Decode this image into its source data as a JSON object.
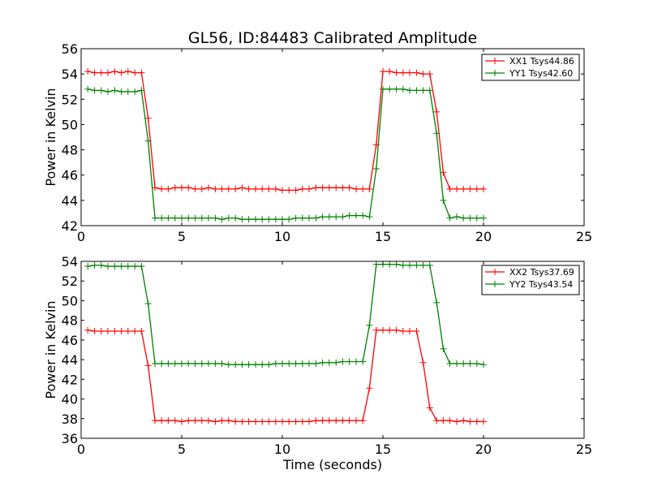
{
  "figure": {
    "title": "GL56, ID:84483 Calibrated Amplitude"
  },
  "chart_data": [
    {
      "type": "line",
      "title": "GL56, ID:84483 Calibrated Amplitude",
      "xlabel": "",
      "ylabel": "Power in Kelvin",
      "xlim": [
        0,
        25
      ],
      "ylim": [
        42,
        56
      ],
      "xticks": [
        "0",
        "5",
        "10",
        "15",
        "20",
        "25"
      ],
      "yticks": [
        "42",
        "44",
        "46",
        "48",
        "50",
        "52",
        "54",
        "56"
      ],
      "grid": false,
      "legend_position": "top-right",
      "x": [
        0.33,
        0.67,
        1.0,
        1.33,
        1.67,
        2.0,
        2.33,
        2.67,
        3.0,
        3.33,
        3.67,
        4.0,
        4.33,
        4.67,
        5.0,
        5.33,
        5.67,
        6.0,
        6.33,
        6.67,
        7.0,
        7.33,
        7.67,
        8.0,
        8.33,
        8.67,
        9.0,
        9.33,
        9.67,
        10.0,
        10.33,
        10.67,
        11.0,
        11.33,
        11.67,
        12.0,
        12.33,
        12.67,
        13.0,
        13.33,
        13.67,
        14.0,
        14.33,
        14.67,
        15.0,
        15.33,
        15.67,
        16.0,
        16.33,
        16.67,
        17.0,
        17.33,
        17.67,
        18.0,
        18.33,
        18.67,
        19.0,
        19.33,
        19.67,
        20.0
      ],
      "series": [
        {
          "name": "XX1 Tsys44.86",
          "color": "#ff0000",
          "values": [
            54.2,
            54.1,
            54.1,
            54.1,
            54.2,
            54.1,
            54.2,
            54.1,
            54.1,
            50.5,
            45.0,
            44.9,
            44.9,
            45.0,
            45.0,
            45.0,
            44.9,
            44.9,
            45.0,
            44.9,
            44.9,
            44.9,
            44.9,
            45.0,
            44.9,
            44.9,
            44.9,
            44.9,
            44.9,
            44.8,
            44.8,
            44.8,
            44.9,
            44.9,
            45.0,
            45.0,
            45.0,
            45.0,
            45.0,
            45.0,
            44.9,
            44.9,
            44.9,
            48.4,
            54.2,
            54.2,
            54.1,
            54.1,
            54.1,
            54.1,
            54.0,
            54.0,
            51.0,
            46.2,
            44.9,
            44.9,
            44.9,
            44.9,
            44.9,
            44.9
          ]
        },
        {
          "name": "YY1 Tsys42.60",
          "color": "#008000",
          "values": [
            52.8,
            52.7,
            52.7,
            52.6,
            52.7,
            52.6,
            52.6,
            52.6,
            52.7,
            48.7,
            42.6,
            42.6,
            42.6,
            42.6,
            42.6,
            42.6,
            42.6,
            42.6,
            42.6,
            42.6,
            42.5,
            42.6,
            42.6,
            42.5,
            42.5,
            42.5,
            42.5,
            42.5,
            42.5,
            42.5,
            42.5,
            42.6,
            42.6,
            42.6,
            42.6,
            42.7,
            42.7,
            42.7,
            42.7,
            42.8,
            42.8,
            42.8,
            42.7,
            46.5,
            52.8,
            52.8,
            52.8,
            52.8,
            52.7,
            52.7,
            52.7,
            52.7,
            49.3,
            44.0,
            42.6,
            42.7,
            42.6,
            42.6,
            42.6,
            42.6
          ]
        }
      ]
    },
    {
      "type": "line",
      "title": "",
      "xlabel": "Time (seconds)",
      "ylabel": "Power in Kelvin",
      "xlim": [
        0,
        25
      ],
      "ylim": [
        36,
        54
      ],
      "xticks": [
        "0",
        "5",
        "10",
        "15",
        "20",
        "25"
      ],
      "yticks": [
        "36",
        "38",
        "40",
        "42",
        "44",
        "46",
        "48",
        "50",
        "52",
        "54"
      ],
      "grid": false,
      "legend_position": "top-right",
      "x": [
        0.33,
        0.67,
        1.0,
        1.33,
        1.67,
        2.0,
        2.33,
        2.67,
        3.0,
        3.33,
        3.67,
        4.0,
        4.33,
        4.67,
        5.0,
        5.33,
        5.67,
        6.0,
        6.33,
        6.67,
        7.0,
        7.33,
        7.67,
        8.0,
        8.33,
        8.67,
        9.0,
        9.33,
        9.67,
        10.0,
        10.33,
        10.67,
        11.0,
        11.33,
        11.67,
        12.0,
        12.33,
        12.67,
        13.0,
        13.33,
        13.67,
        14.0,
        14.33,
        14.67,
        15.0,
        15.33,
        15.67,
        16.0,
        16.33,
        16.67,
        17.0,
        17.33,
        17.67,
        18.0,
        18.33,
        18.67,
        19.0,
        19.33,
        19.67,
        20.0
      ],
      "series": [
        {
          "name": "XX2 Tsys37.69",
          "color": "#ff0000",
          "values": [
            47.0,
            46.9,
            46.9,
            46.9,
            46.9,
            46.9,
            46.9,
            46.9,
            46.9,
            43.4,
            37.8,
            37.8,
            37.8,
            37.8,
            37.7,
            37.8,
            37.8,
            37.8,
            37.8,
            37.7,
            37.8,
            37.8,
            37.7,
            37.7,
            37.7,
            37.7,
            37.7,
            37.7,
            37.7,
            37.7,
            37.7,
            37.7,
            37.7,
            37.7,
            37.8,
            37.8,
            37.8,
            37.8,
            37.8,
            37.8,
            37.8,
            37.8,
            41.1,
            47.0,
            47.0,
            47.0,
            47.0,
            46.9,
            46.9,
            46.9,
            43.7,
            39.1,
            37.8,
            37.8,
            37.8,
            37.7,
            37.8,
            37.7,
            37.7,
            37.7
          ]
        },
        {
          "name": "YY2 Tsys43.54",
          "color": "#008000",
          "values": [
            53.5,
            53.6,
            53.6,
            53.5,
            53.5,
            53.5,
            53.5,
            53.5,
            53.5,
            49.7,
            43.6,
            43.6,
            43.6,
            43.6,
            43.6,
            43.6,
            43.6,
            43.6,
            43.6,
            43.6,
            43.6,
            43.5,
            43.5,
            43.5,
            43.5,
            43.5,
            43.5,
            43.5,
            43.6,
            43.6,
            43.6,
            43.6,
            43.6,
            43.6,
            43.6,
            43.7,
            43.7,
            43.7,
            43.8,
            43.8,
            43.8,
            43.8,
            47.5,
            53.7,
            53.7,
            53.7,
            53.7,
            53.6,
            53.6,
            53.6,
            53.6,
            53.6,
            49.8,
            45.1,
            43.6,
            43.6,
            43.6,
            43.6,
            43.6,
            43.5
          ]
        }
      ]
    }
  ]
}
